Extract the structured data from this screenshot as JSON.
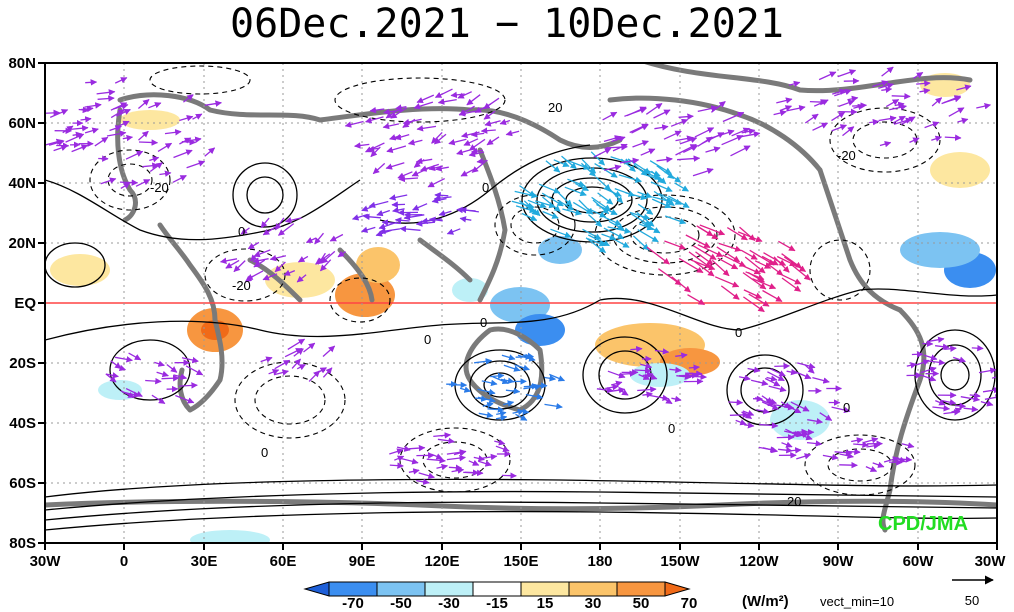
{
  "title": "06Dec.2021 − 10Dec.2021",
  "credit": "CPD/JMA",
  "lat_labels": [
    "80N",
    "60N",
    "40N",
    "20N",
    "EQ",
    "20S",
    "40S",
    "60S",
    "80S"
  ],
  "lon_labels": [
    "30W",
    "0",
    "30E",
    "60E",
    "90E",
    "120E",
    "150E",
    "180",
    "150W",
    "120W",
    "90W",
    "60W",
    "30W"
  ],
  "contour_labels": [
    "20",
    "0",
    "-20",
    "0",
    "-20",
    "0",
    "0",
    "0",
    "0",
    "0",
    "0",
    "-20",
    "20"
  ],
  "colorbar": {
    "labels": [
      "-70",
      "-50",
      "-30",
      "-15",
      "15",
      "30",
      "50",
      "70"
    ],
    "colors": [
      "#1e5fd8",
      "#3b8ef0",
      "#7cc3f2",
      "#bdf0f7",
      "#ffffff",
      "#fde7a0",
      "#fbc46a",
      "#f79640",
      "#f06a18"
    ],
    "units": "(W/m²)",
    "vect_note": "vect_min=10",
    "ref_vector_label": "50"
  },
  "colors": {
    "equator": "#ff4444",
    "coast": "#7a7a7a",
    "arrow_primary": "#9a2be0"
  }
}
